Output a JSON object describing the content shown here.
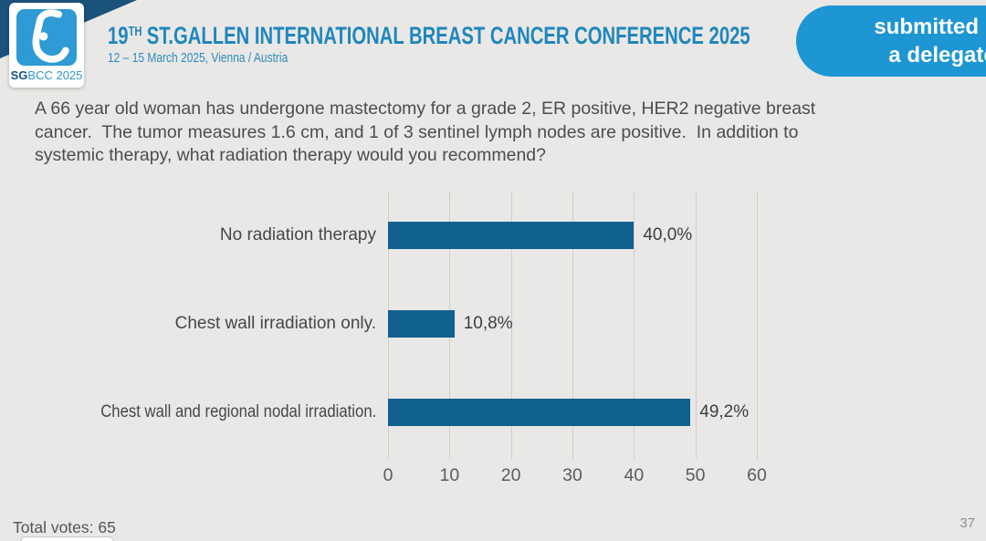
{
  "header": {
    "logo": {
      "caption_bold": "SG",
      "caption_rest": "BCC 2025"
    },
    "title_number": "19",
    "title_superscript": "TH",
    "title_rest": "ST.GALLEN INTERNATIONAL BREAST CANCER CONFERENCE 2025",
    "subtitle": "12 – 15 March 2025, Vienna / Austria",
    "badge": {
      "line1": "submitted by",
      "line2": "a delegate"
    }
  },
  "question": "A 66 year old woman has undergone mastectomy for a grade 2, ER positive, HER2 negative breast cancer.  The tumor measures 1.6 cm, and 1 of 3 sentinel lymph nodes are positive.  In addition to systemic therapy, what radiation therapy would you recommend?",
  "chart_data": {
    "type": "bar",
    "orientation": "horizontal",
    "title": "",
    "xlabel": "",
    "ylabel": "",
    "categories": [
      "No radiation therapy",
      "Chest wall irradiation only.",
      "Chest wall and regional nodal irradiation."
    ],
    "values": [
      40.0,
      10.8,
      49.2
    ],
    "value_labels": [
      "40,0%",
      "10,8%",
      "49,2%"
    ],
    "xlim": [
      0,
      60
    ],
    "xticks": [
      0,
      10,
      20,
      30,
      40,
      50,
      60
    ],
    "grid": true,
    "legend": false,
    "bar_color": "#11618F"
  },
  "footer": {
    "total_votes": "Total votes: 65",
    "page_number": "37"
  },
  "colors": {
    "background": "#E9E8E6",
    "corner_band": "#1B527C",
    "logo_square": "#2E9AD6",
    "title_blue": "#1F86BE",
    "badge_blue": "#1D96D3",
    "bar_blue": "#11618F",
    "gridline": "#CFCECB",
    "question_text": "#4D4D4D"
  }
}
